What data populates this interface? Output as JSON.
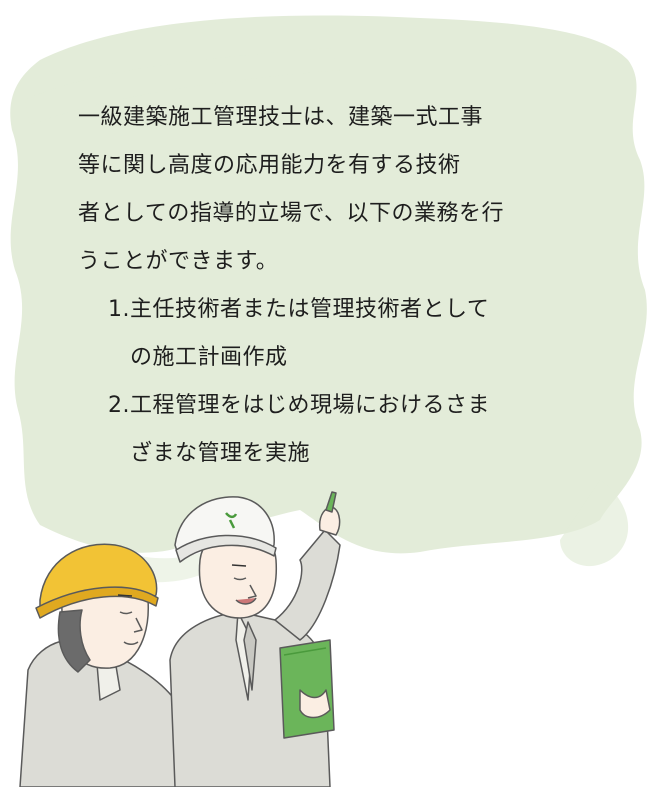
{
  "content": {
    "intro_lines": [
      "一級建築施工管理技士は、建築一式工事",
      "等に関し高度の応用能力を有する技術",
      "者としての指導的立場で、以下の業務を行",
      "うことができます。"
    ],
    "items": [
      {
        "number": "1.",
        "lines": [
          "主任技術者または管理技術者として",
          "の施工計画作成"
        ]
      },
      {
        "number": "2.",
        "lines": [
          "工程管理をはじめ現場におけるさま",
          "ざまな管理を実施"
        ]
      }
    ]
  },
  "colors": {
    "blob": "#e3ecd9",
    "text": "#1e1e1e",
    "yellow_helmet": "#f2c335",
    "white_helmet": "#f7f7f4",
    "helmet_logo": "#4a9a3c",
    "clipboard": "#6bb55a",
    "suit": "#dcdcd6",
    "skin": "#fbeee3"
  }
}
